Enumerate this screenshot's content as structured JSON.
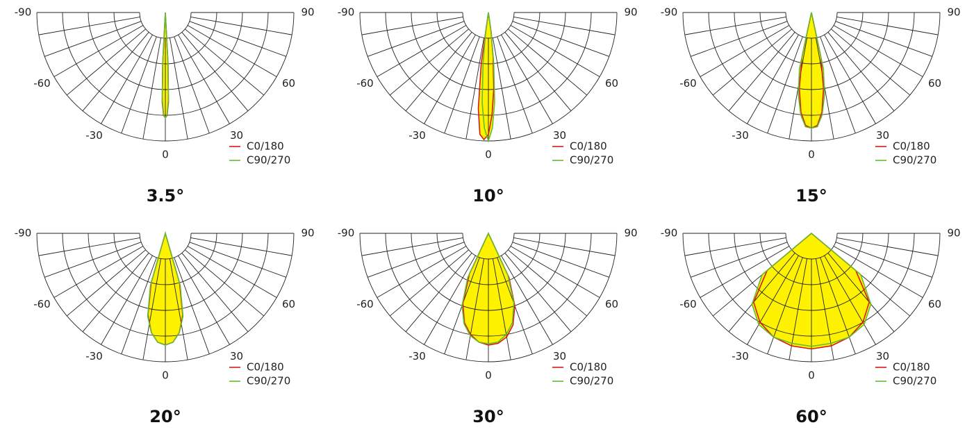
{
  "chart_data": [
    {
      "type": "polar",
      "title": "3.5°",
      "fill_color": "#fff200",
      "xticks": [
        -90,
        -60,
        -30,
        0,
        30,
        60,
        90
      ],
      "rlim": [
        0,
        100
      ],
      "rticks": [
        20,
        40,
        60,
        80,
        100
      ],
      "x": [
        -4,
        -3,
        -2,
        -1,
        0,
        1,
        2,
        3,
        4
      ],
      "series": [
        {
          "name": "C0/180",
          "color": "#d7191c",
          "values": [
            0,
            40,
            70,
            80,
            82,
            80,
            70,
            40,
            0
          ]
        },
        {
          "name": "C90/270",
          "color": "#66bb33",
          "values": [
            0,
            38,
            68,
            79,
            82,
            79,
            68,
            38,
            0
          ]
        }
      ]
    },
    {
      "type": "polar",
      "title": "10°",
      "fill_color": "#fff200",
      "xticks": [
        -90,
        -60,
        -30,
        0,
        30,
        60,
        90
      ],
      "rlim": [
        0,
        100
      ],
      "rticks": [
        20,
        40,
        60,
        80,
        100
      ],
      "x": [
        -10,
        -8,
        -6,
        -4,
        -2,
        0,
        2,
        4,
        6,
        8,
        10
      ],
      "series": [
        {
          "name": "C0/180",
          "color": "#d7191c",
          "values": [
            0,
            40,
            75,
            95,
            99,
            95,
            80,
            60,
            35,
            15,
            0
          ]
        },
        {
          "name": "C90/270",
          "color": "#66bb33",
          "values": [
            0,
            15,
            40,
            70,
            90,
            100,
            90,
            70,
            40,
            15,
            0
          ]
        }
      ]
    },
    {
      "type": "polar",
      "title": "15°",
      "fill_color": "#fff200",
      "xticks": [
        -90,
        -60,
        -30,
        0,
        30,
        60,
        90
      ],
      "rlim": [
        0,
        100
      ],
      "rticks": [
        20,
        40,
        60,
        80,
        100
      ],
      "x": [
        -14,
        -12,
        -9,
        -6,
        -3,
        0,
        3,
        6,
        9,
        12,
        14
      ],
      "series": [
        {
          "name": "C0/180",
          "color": "#d7191c",
          "values": [
            0,
            35,
            60,
            78,
            88,
            90,
            88,
            78,
            60,
            35,
            0
          ]
        },
        {
          "name": "C90/270",
          "color": "#66bb33",
          "values": [
            0,
            45,
            65,
            80,
            89,
            90,
            89,
            80,
            65,
            45,
            0
          ]
        }
      ]
    },
    {
      "type": "polar",
      "title": "20°",
      "fill_color": "#fff200",
      "xticks": [
        -90,
        -60,
        -30,
        0,
        30,
        60,
        90
      ],
      "rlim": [
        0,
        100
      ],
      "rticks": [
        20,
        40,
        60,
        80,
        100
      ],
      "x": [
        -20,
        -16,
        -12,
        -8,
        -4,
        0,
        4,
        8,
        12,
        16,
        20
      ],
      "series": [
        {
          "name": "C0/180",
          "color": "#d7191c",
          "values": [
            0,
            40,
            65,
            78,
            85,
            87,
            85,
            78,
            65,
            40,
            0
          ]
        },
        {
          "name": "C90/270",
          "color": "#66bb33",
          "values": [
            0,
            42,
            66,
            78,
            85,
            87,
            85,
            78,
            66,
            42,
            0
          ]
        }
      ]
    },
    {
      "type": "polar",
      "title": "30°",
      "fill_color": "#fff200",
      "xticks": [
        -90,
        -60,
        -30,
        0,
        30,
        60,
        90
      ],
      "rlim": [
        0,
        100
      ],
      "rticks": [
        20,
        40,
        60,
        80,
        100
      ],
      "x": [
        -30,
        -25,
        -20,
        -15,
        -10,
        -5,
        0,
        5,
        10,
        15,
        20,
        25,
        30
      ],
      "series": [
        {
          "name": "C0/180",
          "color": "#d7191c",
          "values": [
            0,
            35,
            58,
            72,
            80,
            85,
            87,
            86,
            82,
            74,
            60,
            38,
            0
          ]
        },
        {
          "name": "C90/270",
          "color": "#66bb33",
          "values": [
            0,
            38,
            60,
            73,
            81,
            85,
            86,
            85,
            80,
            72,
            58,
            36,
            0
          ]
        }
      ]
    },
    {
      "type": "polar",
      "title": "60°",
      "fill_color": "#fff200",
      "xticks": [
        -90,
        -60,
        -30,
        0,
        30,
        60,
        90
      ],
      "rlim": [
        0,
        100
      ],
      "rticks": [
        20,
        40,
        60,
        80,
        100
      ],
      "x": [
        -60,
        -50,
        -40,
        -30,
        -20,
        -10,
        0,
        10,
        20,
        30,
        40,
        50,
        60
      ],
      "series": [
        {
          "name": "C0/180",
          "color": "#d7191c",
          "values": [
            0,
            45,
            70,
            80,
            86,
            89,
            90,
            89,
            86,
            80,
            70,
            45,
            0
          ]
        },
        {
          "name": "C90/270",
          "color": "#66bb33",
          "values": [
            0,
            50,
            72,
            82,
            86,
            87,
            88,
            87,
            86,
            82,
            72,
            50,
            0
          ]
        }
      ]
    }
  ]
}
